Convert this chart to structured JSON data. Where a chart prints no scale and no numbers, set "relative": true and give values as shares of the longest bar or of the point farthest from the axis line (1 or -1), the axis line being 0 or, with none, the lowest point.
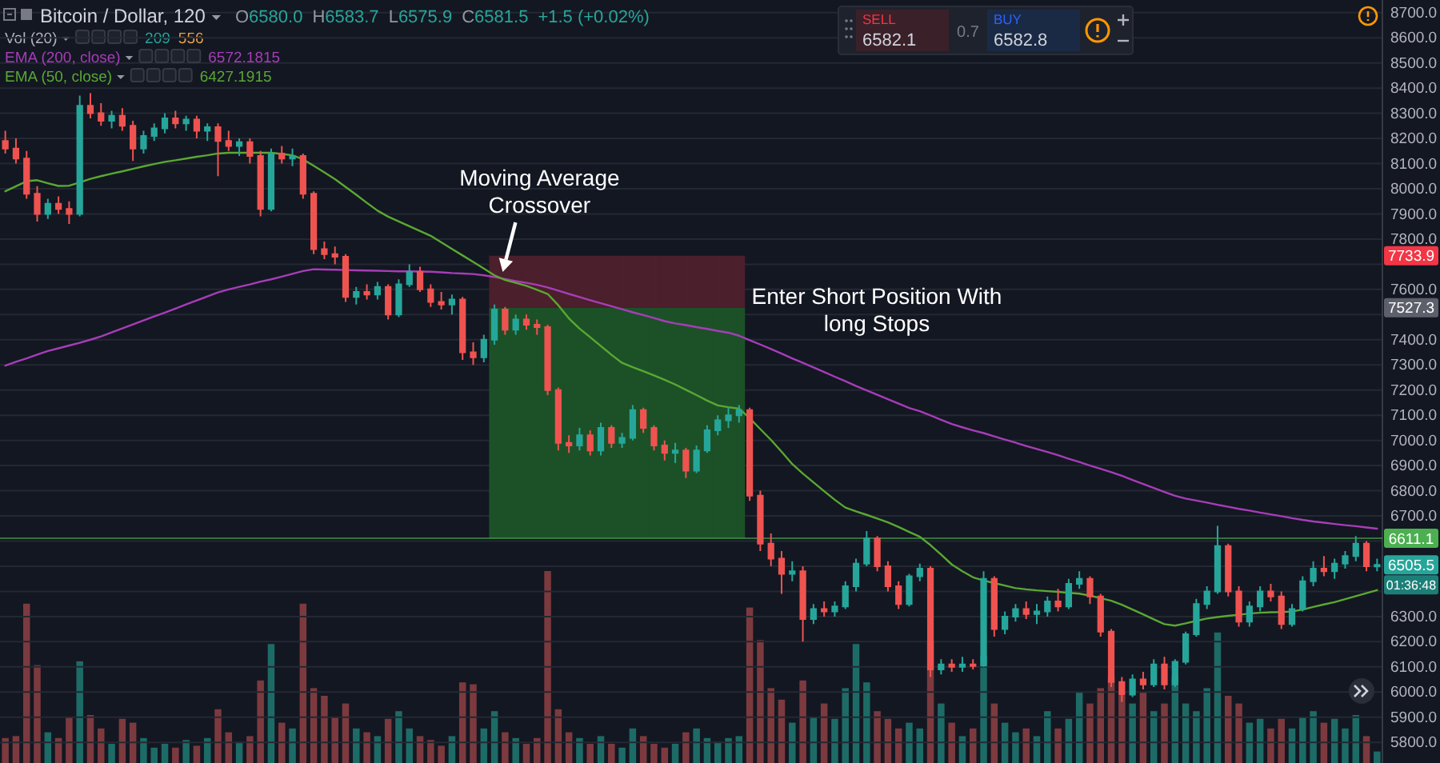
{
  "chart_data": [
    {
      "type": "candlestick",
      "title": "Bitcoin / Dollar, 120",
      "categories": [
        null,
        null,
        null,
        null,
        null,
        null,
        null,
        null,
        null,
        null,
        null,
        null,
        null,
        null,
        null,
        null,
        null,
        null,
        null,
        null,
        null,
        null,
        null,
        null,
        null,
        null,
        null,
        null,
        null,
        null,
        null,
        null,
        null,
        null,
        null,
        null,
        null,
        null,
        null,
        null,
        null,
        null,
        null,
        null,
        null,
        null,
        null,
        null,
        null,
        null,
        null,
        null,
        null,
        null,
        null,
        null,
        null,
        null,
        null,
        null,
        null,
        null,
        null,
        null,
        null,
        null,
        null,
        null,
        null,
        null,
        null,
        null,
        null,
        null,
        null,
        null,
        null,
        null,
        null,
        null,
        null,
        null,
        null,
        null,
        null,
        null,
        null,
        null,
        null,
        null,
        null,
        null,
        null,
        null,
        null,
        null,
        null,
        null,
        null,
        null,
        null,
        null,
        null,
        null,
        null,
        null,
        null,
        null,
        null,
        null,
        null,
        null,
        null,
        null,
        null,
        null,
        null,
        null,
        null,
        null,
        null,
        null,
        null,
        null,
        null,
        null,
        null,
        null,
        null,
        null
      ],
      "ohlc": [
        [
          8190,
          8230,
          8140,
          8160
        ],
        [
          8160,
          8200,
          8100,
          8120
        ],
        [
          8120,
          8150,
          7960,
          7980
        ],
        [
          7980,
          8010,
          7870,
          7900
        ],
        [
          7900,
          7960,
          7880,
          7940
        ],
        [
          7940,
          7970,
          7900,
          7920
        ],
        [
          7920,
          7950,
          7860,
          7900
        ],
        [
          7900,
          8370,
          7890,
          8330
        ],
        [
          8330,
          8380,
          8280,
          8300
        ],
        [
          8300,
          8340,
          8250,
          8270
        ],
        [
          8270,
          8310,
          8240,
          8290
        ],
        [
          8290,
          8320,
          8230,
          8250
        ],
        [
          8250,
          8270,
          8110,
          8160
        ],
        [
          8160,
          8230,
          8140,
          8210
        ],
        [
          8210,
          8260,
          8190,
          8240
        ],
        [
          8240,
          8300,
          8220,
          8280
        ],
        [
          8280,
          8310,
          8240,
          8260
        ],
        [
          8260,
          8290,
          8230,
          8275
        ],
        [
          8275,
          8290,
          8200,
          8230
        ],
        [
          8230,
          8260,
          8190,
          8245
        ],
        [
          8245,
          8260,
          8050,
          8190
        ],
        [
          8190,
          8230,
          8150,
          8170
        ],
        [
          8170,
          8200,
          8130,
          8185
        ],
        [
          8185,
          8200,
          8100,
          8130
        ],
        [
          8130,
          8150,
          7890,
          7920
        ],
        [
          7920,
          8160,
          7910,
          8140
        ],
        [
          8140,
          8170,
          8100,
          8120
        ],
        [
          8120,
          8160,
          8090,
          8130
        ],
        [
          8130,
          8140,
          7960,
          7980
        ],
        [
          7980,
          7990,
          7740,
          7760
        ],
        [
          7760,
          7790,
          7720,
          7740
        ],
        [
          7740,
          7770,
          7700,
          7730
        ],
        [
          7730,
          7740,
          7550,
          7570
        ],
        [
          7570,
          7610,
          7540,
          7590
        ],
        [
          7590,
          7620,
          7560,
          7580
        ],
        [
          7580,
          7630,
          7560,
          7610
        ],
        [
          7610,
          7620,
          7480,
          7500
        ],
        [
          7500,
          7640,
          7490,
          7620
        ],
        [
          7620,
          7700,
          7610,
          7670
        ],
        [
          7670,
          7690,
          7590,
          7600
        ],
        [
          7600,
          7620,
          7530,
          7550
        ],
        [
          7550,
          7590,
          7520,
          7540
        ],
        [
          7540,
          7580,
          7500,
          7560
        ],
        [
          7560,
          7570,
          7320,
          7350
        ],
        [
          7350,
          7390,
          7300,
          7330
        ],
        [
          7330,
          7420,
          7310,
          7400
        ],
        [
          7400,
          7540,
          7380,
          7520
        ],
        [
          7520,
          7530,
          7420,
          7440
        ],
        [
          7440,
          7500,
          7420,
          7480
        ],
        [
          7480,
          7500,
          7440,
          7460
        ],
        [
          7460,
          7480,
          7420,
          7450
        ],
        [
          7450,
          7460,
          7180,
          7200
        ],
        [
          7200,
          7210,
          6960,
          6990
        ],
        [
          6990,
          7020,
          6950,
          6980
        ],
        [
          6980,
          7050,
          6960,
          7020
        ],
        [
          7020,
          7040,
          6940,
          6960
        ],
        [
          6960,
          7070,
          6940,
          7050
        ],
        [
          7050,
          7060,
          6970,
          6990
        ],
        [
          6990,
          7030,
          6970,
          7010
        ],
        [
          7010,
          7140,
          7000,
          7120
        ],
        [
          7120,
          7130,
          7030,
          7050
        ],
        [
          7050,
          7060,
          6960,
          6980
        ],
        [
          6980,
          7000,
          6920,
          6950
        ],
        [
          6950,
          6990,
          6910,
          6960
        ],
        [
          6960,
          6970,
          6850,
          6880
        ],
        [
          6880,
          6980,
          6870,
          6960
        ],
        [
          6960,
          7060,
          6950,
          7040
        ],
        [
          7040,
          7100,
          7020,
          7080
        ],
        [
          7080,
          7130,
          7050,
          7100
        ],
        [
          7100,
          7140,
          7070,
          7120
        ],
        [
          7120,
          7130,
          6760,
          6780
        ],
        [
          6780,
          6800,
          6560,
          6590
        ],
        [
          6590,
          6630,
          6500,
          6530
        ],
        [
          6530,
          6560,
          6390,
          6470
        ],
        [
          6470,
          6520,
          6440,
          6480
        ],
        [
          6480,
          6500,
          6200,
          6290
        ],
        [
          6290,
          6350,
          6270,
          6330
        ],
        [
          6330,
          6360,
          6300,
          6320
        ],
        [
          6320,
          6360,
          6300,
          6340
        ],
        [
          6340,
          6440,
          6330,
          6420
        ],
        [
          6420,
          6530,
          6400,
          6510
        ],
        [
          6510,
          6640,
          6500,
          6610
        ],
        [
          6610,
          6620,
          6480,
          6500
        ],
        [
          6500,
          6520,
          6400,
          6420
        ],
        [
          6420,
          6440,
          6330,
          6350
        ],
        [
          6350,
          6470,
          6340,
          6460
        ],
        [
          6460,
          6510,
          6440,
          6490
        ],
        [
          6490,
          6500,
          6060,
          6090
        ],
        [
          6090,
          6130,
          6070,
          6110
        ],
        [
          6110,
          6130,
          6080,
          6100
        ],
        [
          6100,
          6140,
          6080,
          6110
        ],
        [
          6110,
          6130,
          6090,
          6105
        ],
        [
          6105,
          6480,
          6100,
          6450
        ],
        [
          6450,
          6460,
          6220,
          6250
        ],
        [
          6250,
          6320,
          6230,
          6300
        ],
        [
          6300,
          6350,
          6280,
          6330
        ],
        [
          6330,
          6360,
          6290,
          6310
        ],
        [
          6310,
          6350,
          6270,
          6320
        ],
        [
          6320,
          6380,
          6300,
          6360
        ],
        [
          6360,
          6410,
          6320,
          6340
        ],
        [
          6340,
          6450,
          6330,
          6430
        ],
        [
          6430,
          6480,
          6410,
          6450
        ],
        [
          6450,
          6460,
          6350,
          6380
        ],
        [
          6380,
          6390,
          6220,
          6240
        ],
        [
          6240,
          6250,
          6020,
          6040
        ],
        [
          6040,
          6060,
          5960,
          5990
        ],
        [
          5990,
          6070,
          5980,
          6050
        ],
        [
          6050,
          6080,
          6010,
          6030
        ],
        [
          6030,
          6130,
          6020,
          6110
        ],
        [
          6110,
          6140,
          6010,
          6030
        ],
        [
          6030,
          6130,
          6020,
          6120
        ],
        [
          6120,
          6240,
          6110,
          6230
        ],
        [
          6230,
          6370,
          6220,
          6350
        ],
        [
          6350,
          6420,
          6330,
          6400
        ],
        [
          6400,
          6660,
          6390,
          6580
        ],
        [
          6580,
          6590,
          6380,
          6400
        ],
        [
          6400,
          6420,
          6260,
          6280
        ],
        [
          6280,
          6360,
          6260,
          6340
        ],
        [
          6340,
          6420,
          6320,
          6400
        ],
        [
          6400,
          6430,
          6360,
          6380
        ],
        [
          6380,
          6400,
          6250,
          6270
        ],
        [
          6270,
          6350,
          6260,
          6330
        ],
        [
          6330,
          6460,
          6320,
          6440
        ],
        [
          6440,
          6520,
          6420,
          6490
        ],
        [
          6490,
          6540,
          6460,
          6480
        ],
        [
          6480,
          6530,
          6450,
          6510
        ],
        [
          6510,
          6560,
          6490,
          6540
        ],
        [
          6540,
          6620,
          6520,
          6590
        ],
        [
          6590,
          6600,
          6480,
          6500
        ],
        [
          6500,
          6530,
          6480,
          6505.5
        ]
      ],
      "colors": [
        "#ef5350",
        "#ef5350",
        "#ef5350",
        "#ef5350",
        "#26a69a",
        "#ef5350",
        "#ef5350",
        "#26a69a",
        "#ef5350",
        "#ef5350",
        "#26a69a",
        "#ef5350",
        "#ef5350",
        "#26a69a",
        "#26a69a",
        "#26a69a",
        "#ef5350",
        "#26a69a",
        "#ef5350",
        "#26a69a",
        "#ef5350",
        "#ef5350",
        "#26a69a",
        "#ef5350",
        "#ef5350",
        "#26a69a",
        "#ef5350",
        "#26a69a",
        "#ef5350",
        "#ef5350",
        "#ef5350",
        "#ef5350",
        "#ef5350",
        "#26a69a",
        "#ef5350",
        "#26a69a",
        "#ef5350",
        "#26a69a",
        "#26a69a",
        "#ef5350",
        "#ef5350",
        "#ef5350",
        "#26a69a",
        "#ef5350",
        "#ef5350",
        "#26a69a",
        "#26a69a",
        "#ef5350",
        "#26a69a",
        "#ef5350",
        "#ef5350",
        "#ef5350",
        "#ef5350",
        "#ef5350",
        "#26a69a",
        "#ef5350",
        "#26a69a",
        "#ef5350",
        "#26a69a",
        "#26a69a",
        "#ef5350",
        "#ef5350",
        "#ef5350",
        "#26a69a",
        "#ef5350",
        "#26a69a",
        "#26a69a",
        "#26a69a",
        "#26a69a",
        "#26a69a",
        "#ef5350",
        "#ef5350",
        "#ef5350",
        "#ef5350",
        "#26a69a",
        "#ef5350",
        "#26a69a",
        "#ef5350",
        "#26a69a",
        "#26a69a",
        "#26a69a",
        "#26a69a",
        "#ef5350",
        "#ef5350",
        "#ef5350",
        "#26a69a",
        "#26a69a",
        "#ef5350",
        "#26a69a",
        "#ef5350",
        "#26a69a",
        "#ef5350",
        "#26a69a",
        "#ef5350",
        "#26a69a",
        "#26a69a",
        "#ef5350",
        "#26a69a",
        "#26a69a",
        "#ef5350",
        "#26a69a",
        "#26a69a",
        "#ef5350",
        "#ef5350",
        "#ef5350",
        "#ef5350",
        "#26a69a",
        "#ef5350",
        "#26a69a",
        "#ef5350",
        "#26a69a",
        "#26a69a",
        "#26a69a",
        "#26a69a",
        "#26a69a",
        "#ef5350",
        "#ef5350",
        "#26a69a",
        "#26a69a",
        "#ef5350",
        "#ef5350",
        "#26a69a",
        "#26a69a",
        "#26a69a",
        "#ef5350",
        "#26a69a",
        "#26a69a",
        "#26a69a",
        "#ef5350",
        "#26a69a"
      ],
      "ylim": [
        5718,
        8750
      ],
      "yticks": [
        {
          "value": 5800,
          "label": "5800.0"
        },
        {
          "value": 5900,
          "label": "5900.0"
        },
        {
          "value": 6000,
          "label": "6000.0"
        },
        {
          "value": 6100,
          "label": "6100.0"
        },
        {
          "value": 6200,
          "label": "6200.0"
        },
        {
          "value": 6300,
          "label": "6300.0"
        },
        {
          "value": 6400,
          "label": null
        },
        {
          "value": 6500,
          "label": null
        },
        {
          "value": 6600,
          "label": null
        },
        {
          "value": 6700,
          "label": "6700.0"
        },
        {
          "value": 6800,
          "label": "6800.0"
        },
        {
          "value": 6900,
          "label": "6900.0"
        },
        {
          "value": 7000,
          "label": "7000.0"
        },
        {
          "value": 7100,
          "label": "7100.0"
        },
        {
          "value": 7200,
          "label": "7200.0"
        },
        {
          "value": 7300,
          "label": "7300.0"
        },
        {
          "value": 7400,
          "label": "7400.0"
        },
        {
          "value": 7500,
          "label": null
        },
        {
          "value": 7600,
          "label": "7600.0"
        },
        {
          "value": 7700,
          "label": null
        },
        {
          "value": 7800,
          "label": "7800.0"
        },
        {
          "value": 7900,
          "label": "7900.0"
        },
        {
          "value": 8000,
          "label": "8000.0"
        },
        {
          "value": 8100,
          "label": "8100.0"
        },
        {
          "value": 8200,
          "label": "8200.0"
        },
        {
          "value": 8300,
          "label": "8300.0"
        },
        {
          "value": 8400,
          "label": "8400.0"
        },
        {
          "value": 8500,
          "label": "8500.0"
        },
        {
          "value": 8600,
          "label": "8600.0"
        },
        {
          "value": 8700,
          "label": "8700.0"
        }
      ],
      "grid": "y",
      "legend": "top left",
      "series": [
        {
          "name": "EMA (200, close)",
          "type": "line",
          "color": "#a73db8",
          "values": [
            7297,
            7312,
            7326,
            7341,
            7355,
            7366,
            7377,
            7388,
            7400,
            7413,
            7429,
            7445,
            7461,
            7477,
            7493,
            7508,
            7524,
            7540,
            7556,
            7572,
            7588,
            7600,
            7610,
            7620,
            7631,
            7640,
            7651,
            7662,
            7673,
            7680,
            7679,
            7678,
            7677,
            7676,
            7675,
            7674,
            7673,
            7672,
            7672,
            7671,
            7670,
            7668,
            7665,
            7663,
            7661,
            7656,
            7649,
            7641,
            7633,
            7626,
            7618,
            7608,
            7595,
            7582,
            7570,
            7557,
            7545,
            7533,
            7521,
            7509,
            7498,
            7486,
            7474,
            7465,
            7458,
            7450,
            7443,
            7435,
            7428,
            7416,
            7398,
            7381,
            7363,
            7345,
            7326,
            7308,
            7290,
            7272,
            7253,
            7235,
            7216,
            7199,
            7181,
            7164,
            7146,
            7129,
            7116,
            7099,
            7082,
            7065,
            7052,
            7040,
            7029,
            7016,
            7003,
            6991,
            6978,
            6966,
            6954,
            6941,
            6927,
            6914,
            6900,
            6887,
            6874,
            6859,
            6843,
            6827,
            6811,
            6795,
            6780,
            6769,
            6761,
            6753,
            6744,
            6736,
            6728,
            6721,
            6713,
            6706,
            6699,
            6691,
            6684,
            6678,
            6673,
            6668,
            6663,
            6659,
            6654,
            6649
          ]
        },
        {
          "name": "EMA (50, close)",
          "type": "line",
          "color": "#5aa832",
          "values": [
            7990,
            8010,
            8030,
            8034,
            8022,
            8011,
            8012,
            8025,
            8039,
            8050,
            8060,
            8069,
            8079,
            8089,
            8098,
            8107,
            8113,
            8120,
            8127,
            8133,
            8140,
            8143,
            8143,
            8143,
            8143,
            8143,
            8138,
            8133,
            8117,
            8091,
            8065,
            8038,
            8007,
            7976,
            7944,
            7913,
            7889,
            7870,
            7851,
            7832,
            7813,
            7787,
            7761,
            7735,
            7709,
            7683,
            7656,
            7637,
            7626,
            7614,
            7598,
            7582,
            7537,
            7485,
            7444,
            7410,
            7375,
            7340,
            7308,
            7291,
            7275,
            7258,
            7241,
            7222,
            7201,
            7180,
            7158,
            7139,
            7132,
            7126,
            7088,
            7045,
            7002,
            6955,
            6906,
            6868,
            6833,
            6798,
            6764,
            6733,
            6718,
            6704,
            6689,
            6674,
            6656,
            6636,
            6617,
            6584,
            6546,
            6507,
            6480,
            6456,
            6443,
            6433,
            6423,
            6413,
            6408,
            6404,
            6401,
            6398,
            6394,
            6391,
            6383,
            6373,
            6363,
            6347,
            6328,
            6309,
            6289,
            6270,
            6264,
            6273,
            6283,
            6292,
            6298,
            6303,
            6307,
            6312,
            6315,
            6317,
            6318,
            6320,
            6328,
            6338,
            6348,
            6357,
            6369,
            6381,
            6393,
            6405
          ]
        },
        {
          "type": "bar",
          "color": "#4b1f2b",
          "values": [
            null,
            null,
            null,
            null,
            null,
            null,
            null,
            null,
            null,
            null,
            null,
            null,
            null,
            null,
            null,
            null,
            null,
            null,
            null,
            null,
            null,
            null,
            null,
            null,
            null,
            null,
            null,
            null,
            null,
            null,
            null,
            null,
            null,
            null,
            null,
            null,
            null,
            null,
            null,
            null,
            null,
            null,
            null,
            null,
            null,
            null,
            206.6,
            206.6,
            206.6,
            206.6,
            206.6,
            206.6,
            206.6,
            206.6,
            206.6,
            206.6,
            206.6,
            206.6,
            206.6,
            206.6,
            206.6,
            206.6,
            206.6,
            206.6,
            206.6,
            206.6,
            206.6,
            206.6,
            206.6,
            206.6,
            null,
            null,
            null,
            null,
            null,
            null,
            null,
            null,
            null,
            null,
            null,
            null,
            null,
            null,
            null,
            null,
            null,
            null,
            null,
            null,
            null,
            null,
            null,
            null,
            null,
            null,
            null,
            null,
            null,
            null,
            null,
            null,
            null,
            null,
            null,
            null,
            null,
            null,
            null,
            null,
            null,
            null,
            null,
            null,
            null,
            null,
            null,
            null,
            null,
            null,
            null,
            null,
            null,
            null,
            null,
            null,
            null,
            null,
            null,
            null
          ],
          "base": [
            null,
            null,
            null,
            null,
            null,
            null,
            null,
            null,
            null,
            null,
            null,
            null,
            null,
            null,
            null,
            null,
            null,
            null,
            null,
            null,
            null,
            null,
            null,
            null,
            null,
            null,
            null,
            null,
            null,
            null,
            null,
            null,
            null,
            null,
            null,
            null,
            null,
            null,
            null,
            null,
            null,
            null,
            null,
            null,
            null,
            null,
            7527.3,
            7527.3,
            7527.3,
            7527.3,
            7527.3,
            7527.3,
            7527.3,
            7527.3,
            7527.3,
            7527.3,
            7527.3,
            7527.3,
            7527.3,
            7527.3,
            7527.3,
            7527.3,
            7527.3,
            7527.3,
            7527.3,
            7527.3,
            7527.3,
            7527.3,
            7527.3,
            7527.3,
            null,
            null,
            null,
            null,
            null,
            null,
            null,
            null,
            null,
            null,
            null,
            null,
            null,
            null,
            null,
            null,
            null,
            null,
            null,
            null,
            null,
            null,
            null,
            null,
            null,
            null,
            null,
            null,
            null,
            null,
            null,
            null,
            null,
            null,
            null,
            null,
            null,
            null,
            null,
            null,
            null,
            null,
            null,
            null,
            null,
            null,
            null,
            null,
            null,
            null,
            null,
            null,
            null,
            null,
            null,
            null,
            null,
            null,
            null,
            null
          ]
        },
        {
          "type": "bar",
          "color": "#1c5128",
          "values": [
            null,
            null,
            null,
            null,
            null,
            null,
            null,
            null,
            null,
            null,
            null,
            null,
            null,
            null,
            null,
            null,
            null,
            null,
            null,
            null,
            null,
            null,
            null,
            null,
            null,
            null,
            null,
            null,
            null,
            null,
            null,
            null,
            null,
            null,
            null,
            null,
            null,
            null,
            null,
            null,
            null,
            null,
            null,
            null,
            null,
            null,
            916.2,
            916.2,
            916.2,
            916.2,
            916.2,
            916.2,
            916.2,
            916.2,
            916.2,
            916.2,
            916.2,
            916.2,
            916.2,
            916.2,
            916.2,
            916.2,
            916.2,
            916.2,
            916.2,
            916.2,
            916.2,
            916.2,
            916.2,
            916.2,
            null,
            null,
            null,
            null,
            null,
            null,
            null,
            null,
            null,
            null,
            null,
            null,
            null,
            null,
            null,
            null,
            null,
            null,
            null,
            null,
            null,
            null,
            null,
            null,
            null,
            null,
            null,
            null,
            null,
            null,
            null,
            null,
            null,
            null,
            null,
            null,
            null,
            null,
            null,
            null,
            null,
            null,
            null,
            null,
            null,
            null,
            null,
            null,
            null,
            null,
            null,
            null,
            null,
            null,
            null,
            null,
            null,
            null,
            null,
            null
          ],
          "base": [
            null,
            null,
            null,
            null,
            null,
            null,
            null,
            null,
            null,
            null,
            null,
            null,
            null,
            null,
            null,
            null,
            null,
            null,
            null,
            null,
            null,
            null,
            null,
            null,
            null,
            null,
            null,
            null,
            null,
            null,
            null,
            null,
            null,
            null,
            null,
            null,
            null,
            null,
            null,
            null,
            null,
            null,
            null,
            null,
            null,
            null,
            6611.1,
            6611.1,
            6611.1,
            6611.1,
            6611.1,
            6611.1,
            6611.1,
            6611.1,
            6611.1,
            6611.1,
            6611.1,
            6611.1,
            6611.1,
            6611.1,
            6611.1,
            6611.1,
            6611.1,
            6611.1,
            6611.1,
            6611.1,
            6611.1,
            6611.1,
            6611.1,
            6611.1,
            null,
            null,
            null,
            null,
            null,
            null,
            null,
            null,
            null,
            null,
            null,
            null,
            null,
            null,
            null,
            null,
            null,
            null,
            null,
            null,
            null,
            null,
            null,
            null,
            null,
            null,
            null,
            null,
            null,
            null,
            null,
            null,
            null,
            null,
            null,
            null,
            null,
            null,
            null,
            null,
            null,
            null,
            null,
            null,
            null,
            null,
            null,
            null,
            null,
            null,
            null,
            null,
            null,
            null,
            null,
            null,
            null,
            null,
            null,
            null
          ]
        }
      ],
      "ref_lines": [
        {
          "axis": "y",
          "value": 6611.1,
          "label": "6611.1",
          "color": "#4caf50"
        }
      ],
      "annotations": [
        {
          "text": "Moving Average Crossover",
          "y": 7650
        },
        "Enter Short Position With long Stops",
        "O6580.0",
        "H6583.7",
        "L6575.9",
        "C6581.5",
        "+1.5 (+0.02%)",
        "6572.1815",
        "6427.1915",
        {
          "text": "7733.9",
          "y": 7733.9
        },
        {
          "text": "7527.3",
          "y": 7527.3
        },
        {
          "text": "6505.5",
          "y": 6505.5
        },
        "01:36:48",
        "SELL",
        "6582.1",
        "0.7",
        "BUY",
        "6582.8"
      ]
    },
    {
      "type": "bar",
      "title": "Vol (20)",
      "relative": true,
      "categories": [
        null,
        null,
        null,
        null,
        null,
        null,
        null,
        null,
        null,
        null,
        null,
        null,
        null,
        null,
        null,
        null,
        null,
        null,
        null,
        null,
        null,
        null,
        null,
        null,
        null,
        null,
        null,
        null,
        null,
        null,
        null,
        null,
        null,
        null,
        null,
        null,
        null,
        null,
        null,
        null,
        null,
        null,
        null,
        null,
        null,
        null,
        null,
        null,
        null,
        null,
        null,
        null,
        null,
        null,
        null,
        null,
        null,
        null,
        null,
        null,
        null,
        null,
        null,
        null,
        null,
        null,
        null,
        null,
        null,
        null,
        null,
        null,
        null,
        null,
        null,
        null,
        null,
        null,
        null,
        null,
        null,
        null,
        null,
        null,
        null,
        null,
        null,
        null,
        null,
        null,
        null,
        null,
        null,
        null,
        null,
        null,
        null,
        null,
        null,
        null,
        null,
        null,
        null,
        null,
        null,
        null,
        null,
        null,
        null,
        null,
        null,
        null,
        null,
        null,
        null,
        null,
        null,
        null,
        null,
        null,
        null,
        null,
        null,
        null,
        null,
        null,
        null,
        null,
        null,
        null
      ],
      "values": [
        0.13,
        0.14,
        0.83,
        0.51,
        0.16,
        0.13,
        0.24,
        0.53,
        0.25,
        0.18,
        0.1,
        0.23,
        0.21,
        0.13,
        0.08,
        0.1,
        0.08,
        0.12,
        0.09,
        0.13,
        0.28,
        0.16,
        0.11,
        0.14,
        0.43,
        0.62,
        0.21,
        0.18,
        0.83,
        0.39,
        0.35,
        0.24,
        0.31,
        0.18,
        0.16,
        0.14,
        0.23,
        0.27,
        0.18,
        0.14,
        0.12,
        0.09,
        0.14,
        0.42,
        0.41,
        0.18,
        0.27,
        0.16,
        0.13,
        0.1,
        0.13,
        1,
        0.28,
        0.16,
        0.13,
        0.1,
        0.14,
        0.1,
        0.08,
        0.18,
        0.14,
        0.1,
        0.08,
        0.1,
        0.16,
        0.18,
        0.13,
        0.11,
        0.13,
        0.14,
        0.81,
        0.64,
        0.39,
        0.33,
        0.21,
        0.43,
        0.24,
        0.31,
        0.23,
        0.39,
        0.62,
        0.42,
        0.27,
        0.23,
        0.18,
        0.21,
        0.18,
        0.64,
        0.31,
        0.21,
        0.14,
        0.18,
        0.56,
        0.31,
        0.21,
        0.16,
        0.18,
        0.14,
        0.27,
        0.18,
        0.23,
        0.37,
        0.31,
        0.39,
        0.45,
        0.35,
        0.31,
        0.37,
        0.27,
        0.31,
        0.45,
        0.31,
        0.27,
        0.39,
        0.68,
        0.35,
        0.31,
        0.21,
        0.23,
        0.18,
        0.23,
        0.18,
        0.24,
        0.27,
        0.21,
        0.23,
        0.18,
        0.25,
        0.14,
        0.06
      ],
      "colors": [
        "#7c3a3e",
        "#7c3a3e",
        "#7c3a3e",
        "#7c3a3e",
        "#1d6b66",
        "#7c3a3e",
        "#7c3a3e",
        "#1d6b66",
        "#7c3a3e",
        "#7c3a3e",
        "#1d6b66",
        "#7c3a3e",
        "#7c3a3e",
        "#1d6b66",
        "#1d6b66",
        "#1d6b66",
        "#7c3a3e",
        "#1d6b66",
        "#7c3a3e",
        "#1d6b66",
        "#7c3a3e",
        "#7c3a3e",
        "#1d6b66",
        "#7c3a3e",
        "#7c3a3e",
        "#1d6b66",
        "#7c3a3e",
        "#1d6b66",
        "#7c3a3e",
        "#7c3a3e",
        "#7c3a3e",
        "#7c3a3e",
        "#7c3a3e",
        "#1d6b66",
        "#7c3a3e",
        "#1d6b66",
        "#7c3a3e",
        "#1d6b66",
        "#1d6b66",
        "#7c3a3e",
        "#7c3a3e",
        "#7c3a3e",
        "#1d6b66",
        "#7c3a3e",
        "#7c3a3e",
        "#1d6b66",
        "#1d6b66",
        "#7c3a3e",
        "#1d6b66",
        "#7c3a3e",
        "#7c3a3e",
        "#7c3a3e",
        "#7c3a3e",
        "#7c3a3e",
        "#1d6b66",
        "#7c3a3e",
        "#1d6b66",
        "#7c3a3e",
        "#1d6b66",
        "#1d6b66",
        "#7c3a3e",
        "#7c3a3e",
        "#7c3a3e",
        "#1d6b66",
        "#7c3a3e",
        "#1d6b66",
        "#1d6b66",
        "#1d6b66",
        "#1d6b66",
        "#1d6b66",
        "#7c3a3e",
        "#7c3a3e",
        "#7c3a3e",
        "#7c3a3e",
        "#1d6b66",
        "#7c3a3e",
        "#1d6b66",
        "#7c3a3e",
        "#1d6b66",
        "#1d6b66",
        "#1d6b66",
        "#1d6b66",
        "#7c3a3e",
        "#7c3a3e",
        "#7c3a3e",
        "#1d6b66",
        "#1d6b66",
        "#7c3a3e",
        "#1d6b66",
        "#7c3a3e",
        "#1d6b66",
        "#7c3a3e",
        "#1d6b66",
        "#7c3a3e",
        "#1d6b66",
        "#1d6b66",
        "#7c3a3e",
        "#1d6b66",
        "#1d6b66",
        "#7c3a3e",
        "#1d6b66",
        "#1d6b66",
        "#7c3a3e",
        "#7c3a3e",
        "#7c3a3e",
        "#7c3a3e",
        "#1d6b66",
        "#7c3a3e",
        "#1d6b66",
        "#7c3a3e",
        "#1d6b66",
        "#1d6b66",
        "#1d6b66",
        "#1d6b66",
        "#1d6b66",
        "#7c3a3e",
        "#7c3a3e",
        "#1d6b66",
        "#1d6b66",
        "#7c3a3e",
        "#7c3a3e",
        "#1d6b66",
        "#1d6b66",
        "#1d6b66",
        "#7c3a3e",
        "#1d6b66",
        "#1d6b66",
        "#1d6b66",
        "#7c3a3e",
        "#1d6b66"
      ],
      "annotations": [
        "209",
        "556"
      ]
    }
  ]
}
